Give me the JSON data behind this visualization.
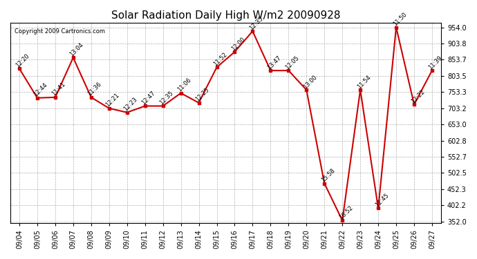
{
  "title": "Solar Radiation Daily High W/m2 20090928",
  "copyright": "Copyright 2009 Cartronics.com",
  "dates": [
    "09/04",
    "09/05",
    "09/06",
    "09/07",
    "09/08",
    "09/09",
    "09/10",
    "09/11",
    "09/12",
    "09/13",
    "09/14",
    "09/15",
    "09/16",
    "09/17",
    "09/18",
    "09/19",
    "09/20",
    "09/21",
    "09/22",
    "09/23",
    "09/24",
    "09/25",
    "09/26",
    "09/27"
  ],
  "values": [
    826,
    735,
    737,
    860,
    737,
    703,
    690,
    710,
    710,
    750,
    720,
    830,
    878,
    942,
    820,
    820,
    760,
    470,
    355,
    760,
    393,
    954,
    715,
    820
  ],
  "times": [
    "12:20",
    "12:44",
    "11:41",
    "13:04",
    "11:36",
    "12:21",
    "12:23",
    "12:47",
    "12:35",
    "11:06",
    "12:25",
    "11:52",
    "12:00",
    "12:35",
    "13:47",
    "12:05",
    "13:00",
    "15:58",
    "16:52",
    "11:54",
    "12:45",
    "11:50",
    "12:22",
    "11:39"
  ],
  "line_color": "#cc0000",
  "marker_color": "#cc0000",
  "bg_color": "#ffffff",
  "grid_color": "#b0b0b0",
  "ylim_min": 352.0,
  "ylim_max": 954.0,
  "yticks": [
    352.0,
    402.2,
    452.3,
    502.5,
    552.7,
    602.8,
    653.0,
    703.2,
    753.3,
    803.5,
    853.7,
    903.8,
    954.0
  ]
}
